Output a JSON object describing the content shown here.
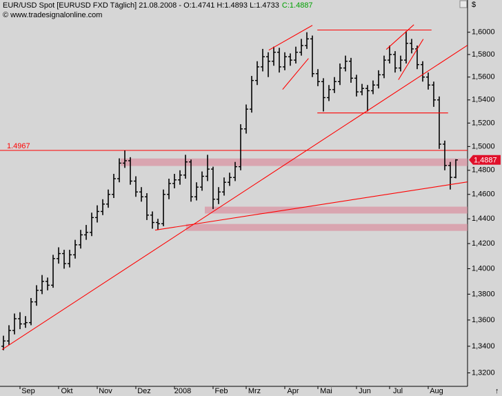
{
  "chart_data": {
    "type": "ohlc",
    "title": "EUR/USD Spot [EURUSD FXD  Täglich] 21.08.2008 - O:1.4741 H:1.4893 L:1.4733",
    "title_close": "C:1.4887",
    "subtitle": "© www.tradesignalonline.com",
    "currency_label": "$",
    "log_scale": true,
    "grid": false,
    "color": "#000000",
    "annotation_color": "#ff0000",
    "zone_color": "#d9a5b0",
    "categories": [
      null,
      null,
      null,
      "Sep",
      null,
      null,
      null,
      null,
      null,
      null,
      "Okt",
      null,
      null,
      null,
      null,
      null,
      null,
      "Nov",
      null,
      null,
      null,
      null,
      null,
      null,
      "Dez",
      null,
      null,
      null,
      null,
      null,
      null,
      "2008",
      null,
      null,
      null,
      null,
      null,
      null,
      "Feb",
      null,
      null,
      null,
      null,
      null,
      "Mrz",
      null,
      null,
      null,
      null,
      null,
      null,
      "Apr",
      null,
      null,
      null,
      null,
      null,
      "Mai",
      null,
      null,
      null,
      null,
      null,
      null,
      "Jun",
      null,
      null,
      null,
      null,
      null,
      "Jul",
      null,
      null,
      null,
      null,
      null,
      null,
      "Aug",
      null,
      null,
      null,
      null,
      null
    ],
    "open": [
      1.34,
      1.344,
      1.352,
      1.361,
      1.357,
      1.358,
      1.374,
      1.383,
      1.39,
      1.387,
      1.408,
      1.412,
      1.404,
      1.411,
      1.419,
      1.427,
      1.429,
      1.441,
      1.446,
      1.452,
      1.46,
      1.473,
      1.486,
      1.488,
      1.471,
      1.462,
      1.458,
      1.443,
      1.437,
      1.436,
      1.46,
      1.469,
      1.472,
      1.476,
      1.487,
      1.458,
      1.466,
      1.475,
      1.481,
      1.456,
      1.462,
      1.47,
      1.474,
      1.483,
      1.515,
      1.532,
      1.557,
      1.569,
      1.578,
      1.574,
      1.582,
      1.569,
      1.578,
      1.575,
      1.582,
      1.588,
      1.594,
      1.563,
      1.556,
      1.542,
      1.549,
      1.556,
      1.568,
      1.574,
      1.559,
      1.547,
      1.55,
      1.548,
      1.553,
      1.562,
      1.575,
      1.58,
      1.568,
      1.575,
      1.59,
      1.585,
      1.571,
      1.56,
      1.553,
      1.54,
      1.502,
      1.484,
      1.4741
    ],
    "high": [
      1.348,
      1.356,
      1.365,
      1.366,
      1.363,
      1.377,
      1.387,
      1.395,
      1.393,
      1.411,
      1.417,
      1.415,
      1.415,
      1.423,
      1.431,
      1.435,
      1.445,
      1.451,
      1.456,
      1.464,
      1.477,
      1.49,
      1.4966,
      1.491,
      1.475,
      1.466,
      1.461,
      1.446,
      1.44,
      1.464,
      1.473,
      1.477,
      1.48,
      1.493,
      1.489,
      1.47,
      1.479,
      1.493,
      1.483,
      1.466,
      1.474,
      1.478,
      1.487,
      1.519,
      1.536,
      1.561,
      1.574,
      1.585,
      1.582,
      1.587,
      1.586,
      1.582,
      1.581,
      1.587,
      1.594,
      1.6,
      1.597,
      1.567,
      1.559,
      1.553,
      1.56,
      1.572,
      1.579,
      1.577,
      1.562,
      1.554,
      1.553,
      1.557,
      1.566,
      1.579,
      1.588,
      1.583,
      1.579,
      1.601,
      1.594,
      1.588,
      1.574,
      1.564,
      1.556,
      1.543,
      1.505,
      1.487,
      1.4893
    ],
    "low": [
      1.337,
      1.341,
      1.349,
      1.353,
      1.354,
      1.356,
      1.371,
      1.38,
      1.383,
      1.385,
      1.404,
      1.4,
      1.401,
      1.408,
      1.416,
      1.423,
      1.426,
      1.437,
      1.443,
      1.449,
      1.457,
      1.47,
      1.482,
      1.468,
      1.458,
      1.454,
      1.439,
      1.432,
      1.431,
      1.434,
      1.456,
      1.465,
      1.468,
      1.473,
      1.454,
      1.455,
      1.463,
      1.471,
      1.448,
      1.452,
      1.459,
      1.467,
      1.471,
      1.48,
      1.511,
      1.529,
      1.553,
      1.565,
      1.56,
      1.57,
      1.564,
      1.566,
      1.57,
      1.572,
      1.579,
      1.585,
      1.56,
      1.552,
      1.53,
      1.539,
      1.546,
      1.553,
      1.565,
      1.555,
      1.543,
      1.544,
      1.53,
      1.545,
      1.55,
      1.559,
      1.572,
      1.564,
      1.565,
      1.572,
      1.581,
      1.567,
      1.556,
      1.549,
      1.534,
      1.498,
      1.48,
      1.464,
      1.4733
    ],
    "close": [
      1.344,
      1.352,
      1.361,
      1.357,
      1.358,
      1.374,
      1.383,
      1.39,
      1.387,
      1.408,
      1.412,
      1.404,
      1.411,
      1.419,
      1.427,
      1.429,
      1.441,
      1.446,
      1.452,
      1.46,
      1.473,
      1.486,
      1.488,
      1.471,
      1.462,
      1.458,
      1.443,
      1.437,
      1.436,
      1.46,
      1.469,
      1.472,
      1.476,
      1.487,
      1.458,
      1.466,
      1.475,
      1.481,
      1.456,
      1.462,
      1.47,
      1.474,
      1.483,
      1.515,
      1.532,
      1.557,
      1.569,
      1.578,
      1.574,
      1.582,
      1.569,
      1.578,
      1.575,
      1.582,
      1.588,
      1.594,
      1.563,
      1.556,
      1.542,
      1.549,
      1.556,
      1.568,
      1.574,
      1.559,
      1.547,
      1.55,
      1.548,
      1.553,
      1.562,
      1.575,
      1.58,
      1.568,
      1.575,
      1.59,
      1.585,
      1.571,
      1.56,
      1.553,
      1.54,
      1.502,
      1.484,
      1.4741,
      1.4887
    ],
    "ylim": [
      1.31,
      1.618
    ],
    "yticks": [
      {
        "value": 1.32,
        "label": "1,3200"
      },
      {
        "value": 1.34,
        "label": "1,3400"
      },
      {
        "value": 1.36,
        "label": "1,3600"
      },
      {
        "value": 1.38,
        "label": "1,3800"
      },
      {
        "value": 1.4,
        "label": "1,4000"
      },
      {
        "value": 1.42,
        "label": "1,4200"
      },
      {
        "value": 1.44,
        "label": "1,4400"
      },
      {
        "value": 1.46,
        "label": "1,4600"
      },
      {
        "value": 1.48,
        "label": "1,4800"
      },
      {
        "value": 1.5,
        "label": "1,5000"
      },
      {
        "value": 1.52,
        "label": "1,5200"
      },
      {
        "value": 1.54,
        "label": "1,5400"
      },
      {
        "value": 1.56,
        "label": "1,5600"
      },
      {
        "value": 1.58,
        "label": "1,5800"
      },
      {
        "value": 1.6,
        "label": "1,6000"
      }
    ],
    "level_line": 1.4967,
    "last_price": {
      "value": 1.4887,
      "label": "1,4887"
    },
    "trendlines": [
      {
        "x": [
          -0.25,
          84.1
        ],
        "y": [
          1.3375,
          1.5882
        ]
      },
      {
        "x": [
          27.5,
          84.1
        ],
        "y": [
          1.4308,
          1.4703
        ]
      },
      {
        "x": [
          56.9,
          77.6
        ],
        "y": [
          1.602,
          1.602
        ]
      },
      {
        "x": [
          56.9,
          80.6
        ],
        "y": [
          1.5287,
          1.5287
        ]
      },
      {
        "x": [
          48.1,
          56.0
        ],
        "y": [
          1.5839,
          1.6062
        ]
      },
      {
        "x": [
          50.6,
          55.3
        ],
        "y": [
          1.5491,
          1.5765
        ]
      },
      {
        "x": [
          69.4,
          74.4
        ],
        "y": [
          1.5845,
          1.6068
        ]
      },
      {
        "x": [
          71.6,
          76.1
        ],
        "y": [
          1.5576,
          1.5938
        ]
      }
    ],
    "zones": [
      {
        "x": [
          21.25,
          84.1
        ],
        "y": [
          1.4836,
          1.4899
        ]
      },
      {
        "x": [
          36.5,
          84.1
        ],
        "y": [
          1.4443,
          1.4499
        ]
      },
      {
        "x": [
          33.1,
          84.1
        ],
        "y": [
          1.4302,
          1.4358
        ]
      }
    ]
  }
}
